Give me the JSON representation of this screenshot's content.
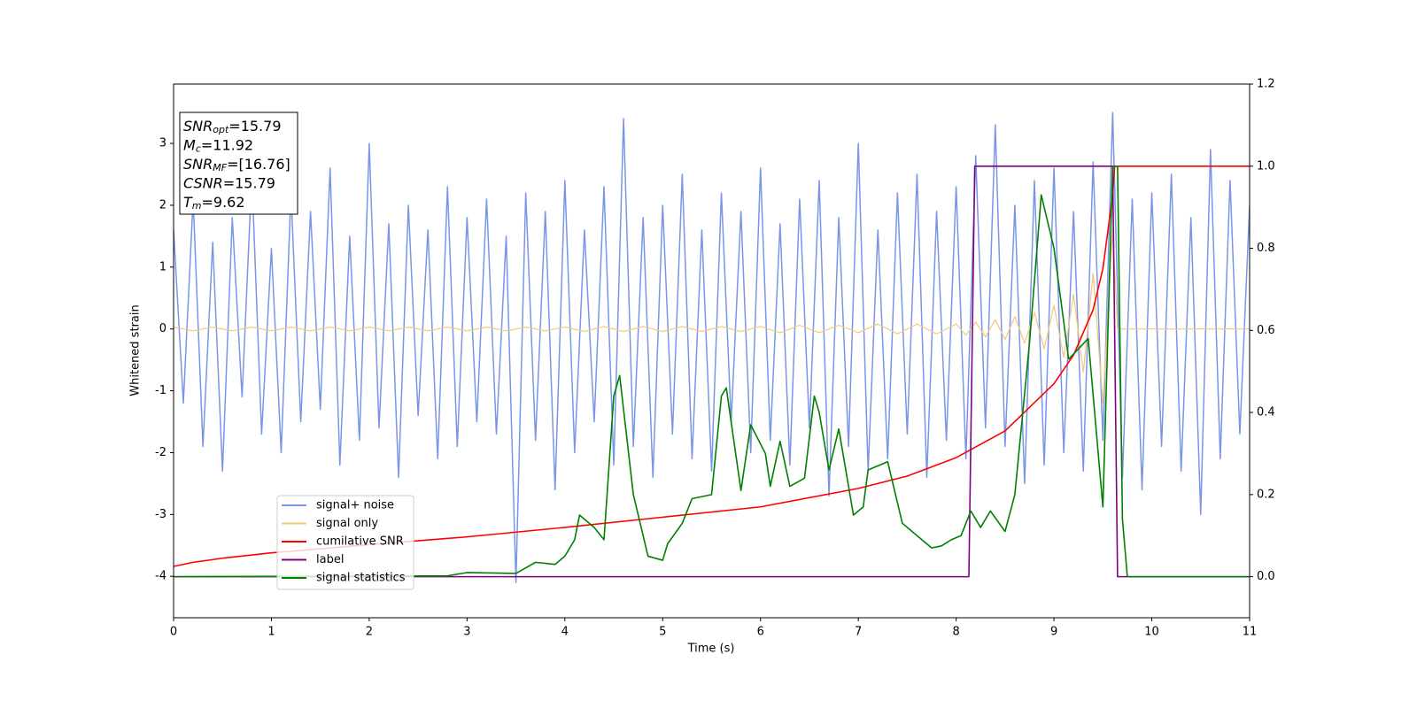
{
  "chart_data": {
    "type": "line",
    "xlabel": "Time (s)",
    "ylabel": "Whitened strain",
    "xlim": [
      0,
      11
    ],
    "ylim": [
      -4.67,
      3.96
    ],
    "y2lim": [
      -0.1,
      1.2
    ],
    "xticks": [
      0,
      1,
      2,
      3,
      4,
      5,
      6,
      7,
      8,
      9,
      10,
      11
    ],
    "yticks": [
      -4,
      -3,
      -2,
      -1,
      0,
      1,
      2,
      3
    ],
    "y2ticks": [
      {
        "value": 0,
        "label": "0.0"
      },
      {
        "value": 0.2,
        "label": "0.2"
      },
      {
        "value": 0.4,
        "label": "0.4"
      },
      {
        "value": 0.6,
        "label": "0.6"
      },
      {
        "value": 0.8,
        "label": "0.8"
      },
      {
        "value": 1,
        "label": "1.0"
      },
      {
        "value": 1.2,
        "label": "1.2"
      }
    ],
    "legend": "lower left",
    "annotations": [
      {
        "symbol": "SNR",
        "subscript": "opt",
        "text": "=15.79"
      },
      {
        "symbol": "M",
        "subscript": "c",
        "text": "=11.92"
      },
      {
        "symbol": "SNR",
        "subscript": "MF",
        "text": "=[16.76]"
      },
      {
        "symbol": "CSNR",
        "text": "=15.79"
      },
      {
        "symbol": "T",
        "subscript": "m",
        "text": "=9.62"
      }
    ],
    "series": [
      {
        "name": "signal+ noise",
        "color": "#7a95e8",
        "axis": "y",
        "x": [
          0,
          0.1,
          0.2,
          0.3,
          0.4,
          0.5,
          0.6,
          0.7,
          0.8,
          0.9,
          1,
          1.1,
          1.2,
          1.3,
          1.4,
          1.5,
          1.6,
          1.7,
          1.8,
          1.9,
          2,
          2.1,
          2.2,
          2.3,
          2.4,
          2.5,
          2.6,
          2.7,
          2.8,
          2.9,
          3,
          3.1,
          3.2,
          3.3,
          3.4,
          3.5,
          3.6,
          3.7,
          3.8,
          3.9,
          4,
          4.1,
          4.2,
          4.3,
          4.4,
          4.5,
          4.6,
          4.7,
          4.8,
          4.9,
          5,
          5.1,
          5.2,
          5.3,
          5.4,
          5.5,
          5.6,
          5.7,
          5.8,
          5.9,
          6,
          6.1,
          6.2,
          6.3,
          6.4,
          6.5,
          6.6,
          6.7,
          6.8,
          6.9,
          7,
          7.1,
          7.2,
          7.3,
          7.4,
          7.5,
          7.6,
          7.7,
          7.8,
          7.9,
          8,
          8.1,
          8.2,
          8.3,
          8.4,
          8.5,
          8.6,
          8.7,
          8.8,
          8.9,
          9,
          9.1,
          9.2,
          9.3,
          9.4,
          9.5,
          9.6,
          9.7,
          9.8,
          9.9,
          10,
          10.1,
          10.2,
          10.3,
          10.4,
          10.5,
          10.6,
          10.7,
          10.8,
          10.9,
          11
        ],
        "values": [
          1.6,
          -1.2,
          2.1,
          -1.9,
          1.4,
          -2.3,
          1.8,
          -1.1,
          2.5,
          -1.7,
          1.3,
          -2.0,
          2.2,
          -1.5,
          1.9,
          -1.3,
          2.6,
          -2.2,
          1.5,
          -1.8,
          3.0,
          -1.6,
          1.7,
          -2.4,
          2.0,
          -1.4,
          1.6,
          -2.1,
          2.3,
          -1.9,
          1.8,
          -1.5,
          2.1,
          -1.7,
          1.5,
          -4.1,
          2.2,
          -1.8,
          1.9,
          -2.6,
          2.4,
          -2.0,
          1.6,
          -1.5,
          2.3,
          -2.2,
          3.4,
          -1.9,
          1.8,
          -2.4,
          2.0,
          -1.7,
          2.5,
          -2.1,
          1.6,
          -2.3,
          2.2,
          -1.5,
          1.9,
          -2.0,
          2.6,
          -1.8,
          1.7,
          -2.2,
          2.1,
          -1.6,
          2.4,
          -2.7,
          1.8,
          -1.9,
          3.0,
          -2.3,
          1.6,
          -2.1,
          2.2,
          -1.7,
          2.5,
          -2.4,
          1.9,
          -1.8,
          2.3,
          -2.1,
          2.8,
          -1.6,
          3.3,
          -1.9,
          2.0,
          -2.5,
          2.4,
          -2.2,
          2.6,
          -2.0,
          1.9,
          -2.3,
          2.7,
          -1.8,
          3.5,
          -2.4,
          2.1,
          -2.6,
          2.2,
          -1.9,
          2.5,
          -2.3,
          1.8,
          -3.0,
          2.9,
          -2.1,
          2.4,
          -1.7,
          2.0
        ]
      },
      {
        "name": "signal only",
        "color": "#f5c87a",
        "axis": "y",
        "x": [
          0,
          0.2,
          0.4,
          0.6,
          0.8,
          1,
          1.2,
          1.4,
          1.6,
          1.8,
          2,
          2.2,
          2.4,
          2.6,
          2.8,
          3,
          3.2,
          3.4,
          3.6,
          3.8,
          4,
          4.2,
          4.4,
          4.6,
          4.8,
          5,
          5.2,
          5.4,
          5.6,
          5.8,
          6,
          6.2,
          6.4,
          6.6,
          6.8,
          7,
          7.2,
          7.4,
          7.6,
          7.8,
          8,
          8.1,
          8.2,
          8.3,
          8.4,
          8.5,
          8.6,
          8.7,
          8.8,
          8.9,
          9,
          9.1,
          9.2,
          9.3,
          9.4,
          9.5,
          9.6,
          9.65,
          11
        ],
        "values": [
          0.03,
          -0.03,
          0.03,
          -0.03,
          0.03,
          -0.03,
          0.03,
          -0.03,
          0.03,
          -0.03,
          0.03,
          -0.03,
          0.03,
          -0.03,
          0.03,
          -0.03,
          0.03,
          -0.03,
          0.03,
          -0.03,
          0.03,
          -0.04,
          0.04,
          -0.04,
          0.04,
          -0.04,
          0.04,
          -0.04,
          0.04,
          -0.04,
          0.04,
          -0.06,
          0.06,
          -0.06,
          0.06,
          -0.06,
          0.08,
          -0.08,
          0.08,
          -0.08,
          0.08,
          -0.1,
          0.11,
          -0.13,
          0.15,
          -0.17,
          0.2,
          -0.23,
          0.27,
          -0.32,
          0.38,
          -0.46,
          0.56,
          -0.7,
          0.9,
          -1.2,
          1.6,
          0,
          0
        ]
      },
      {
        "name": "cumilative SNR",
        "color": "#ff0000",
        "axis": "y2",
        "x": [
          0,
          0.2,
          0.5,
          1,
          2,
          3,
          4,
          5,
          6,
          7,
          7.5,
          8,
          8.5,
          9,
          9.2,
          9.4,
          9.5,
          9.6,
          9.62,
          11
        ],
        "values": [
          0.025,
          0.035,
          0.045,
          0.058,
          0.078,
          0.097,
          0.12,
          0.145,
          0.17,
          0.215,
          0.245,
          0.29,
          0.355,
          0.47,
          0.54,
          0.65,
          0.75,
          0.93,
          1.0,
          1.0
        ]
      },
      {
        "name": "label",
        "color": "#800080",
        "axis": "y2",
        "x": [
          0,
          8.13,
          8.19,
          9.6,
          9.65,
          11
        ],
        "values": [
          0,
          0,
          1,
          1,
          0,
          0
        ]
      },
      {
        "name": "signal statistics",
        "color": "#008000",
        "axis": "y2",
        "x": [
          0,
          2.8,
          3.0,
          3.5,
          3.7,
          3.9,
          4.0,
          4.1,
          4.15,
          4.3,
          4.4,
          4.5,
          4.56,
          4.7,
          4.85,
          5.0,
          5.05,
          5.2,
          5.3,
          5.5,
          5.6,
          5.65,
          5.8,
          5.9,
          6.05,
          6.1,
          6.2,
          6.3,
          6.45,
          6.55,
          6.6,
          6.7,
          6.8,
          6.95,
          7.05,
          7.1,
          7.3,
          7.45,
          7.6,
          7.75,
          7.85,
          7.95,
          8.05,
          8.15,
          8.25,
          8.35,
          8.5,
          8.6,
          8.75,
          8.87,
          9.0,
          9.15,
          9.35,
          9.5,
          9.6,
          9.65,
          9.7,
          9.75,
          11
        ],
        "values": [
          0,
          0.002,
          0.01,
          0.008,
          0.035,
          0.03,
          0.05,
          0.09,
          0.15,
          0.12,
          0.09,
          0.44,
          0.49,
          0.2,
          0.05,
          0.04,
          0.08,
          0.13,
          0.19,
          0.2,
          0.44,
          0.46,
          0.21,
          0.37,
          0.3,
          0.22,
          0.33,
          0.22,
          0.24,
          0.44,
          0.4,
          0.26,
          0.36,
          0.15,
          0.17,
          0.26,
          0.28,
          0.13,
          0.1,
          0.07,
          0.075,
          0.09,
          0.1,
          0.16,
          0.12,
          0.16,
          0.11,
          0.2,
          0.57,
          0.93,
          0.8,
          0.53,
          0.58,
          0.17,
          1.0,
          1.0,
          0.14,
          0,
          0
        ]
      }
    ]
  }
}
